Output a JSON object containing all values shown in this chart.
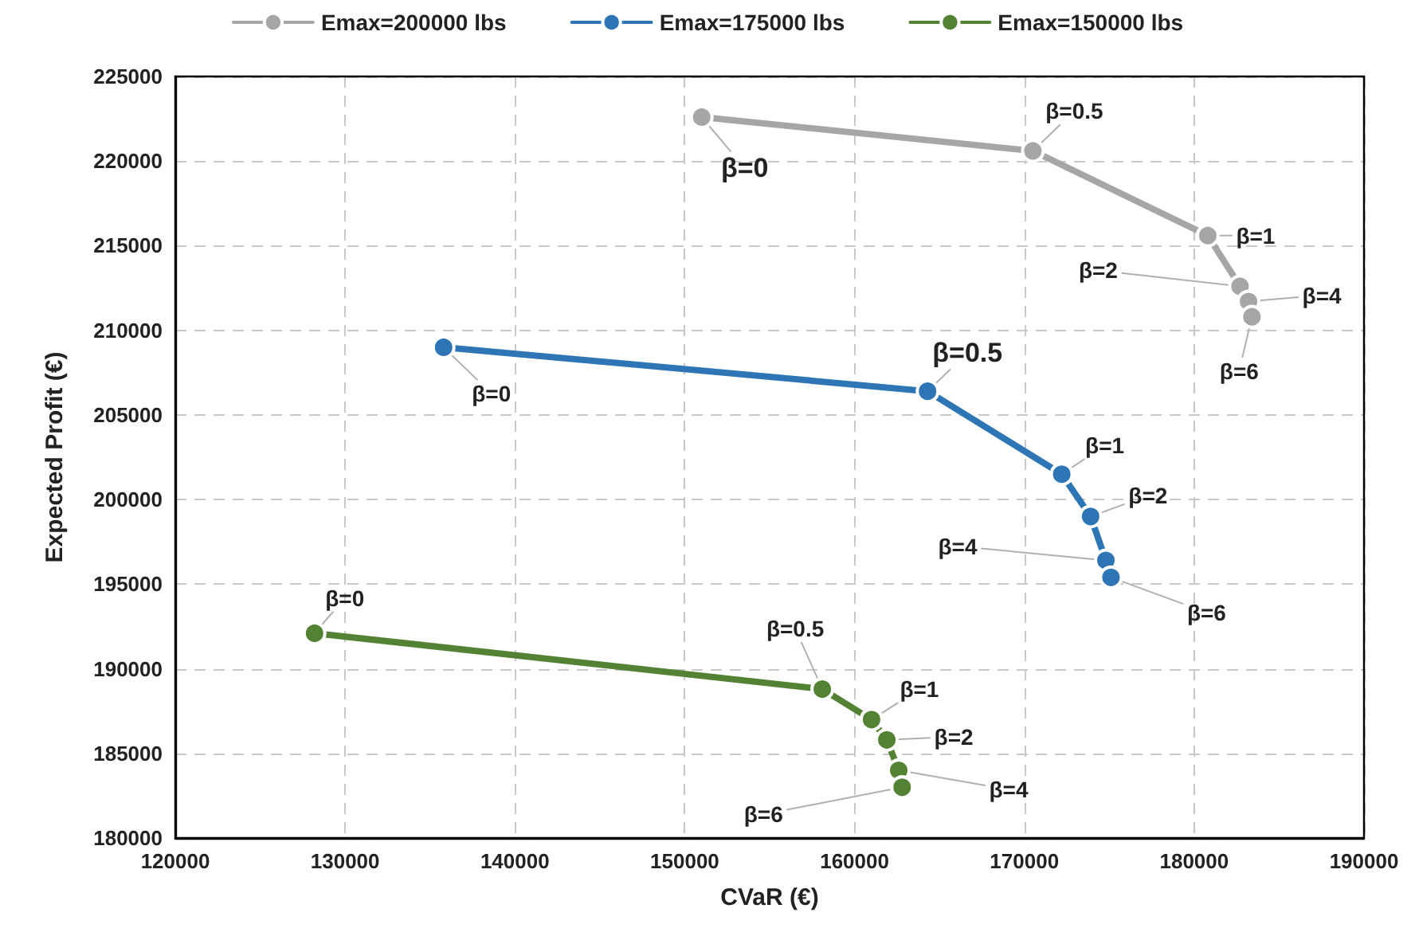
{
  "chart_data": {
    "type": "line",
    "xlabel": "CVaR (€)",
    "ylabel": "Expected Profit (€)",
    "xlim": [
      120000,
      190000
    ],
    "xticks": [
      120000,
      130000,
      140000,
      150000,
      160000,
      170000,
      180000,
      190000
    ],
    "ylim": [
      180000,
      225000
    ],
    "yticks": [
      180000,
      185000,
      190000,
      195000,
      200000,
      205000,
      210000,
      215000,
      220000,
      225000
    ],
    "grid": true,
    "legend": "top",
    "marker": "circle",
    "line_style": "solid",
    "series": [
      {
        "name": "Emax=200000 lbs",
        "color": "#a6a6a6",
        "x": [
          151000,
          170500,
          180800,
          182700,
          183200,
          183400
        ],
        "values": [
          222600,
          220600,
          215600,
          212600,
          211700,
          210800
        ]
      },
      {
        "name": "Emax=175000 lbs",
        "color": "#2e75b6",
        "x": [
          135800,
          164300,
          172200,
          173900,
          174800,
          175100
        ],
        "values": [
          209000,
          206400,
          201500,
          199000,
          196400,
          195400
        ]
      },
      {
        "name": "Emax=150000 lbs",
        "color": "#548235",
        "x": [
          128200,
          158100,
          161000,
          161900,
          162600,
          162800
        ],
        "values": [
          192100,
          188800,
          187000,
          185800,
          184000,
          183000
        ]
      }
    ],
    "annotations": [
      {
        "text": "β=0",
        "x": 151000,
        "y": 222600
      },
      {
        "text": "β=0.5",
        "x": 170500,
        "y": 220600
      },
      {
        "text": "β=1",
        "x": 180800,
        "y": 215600
      },
      {
        "text": "β=2",
        "x": 182700,
        "y": 212600
      },
      {
        "text": "β=4",
        "x": 183200,
        "y": 211700
      },
      {
        "text": "β=6",
        "x": 183400,
        "y": 210800
      },
      {
        "text": "β=0",
        "x": 135800,
        "y": 209000
      },
      {
        "text": "β=0.5",
        "x": 164300,
        "y": 206400
      },
      {
        "text": "β=1",
        "x": 172200,
        "y": 201500
      },
      {
        "text": "β=2",
        "x": 173900,
        "y": 199000
      },
      {
        "text": "β=4",
        "x": 174800,
        "y": 196400
      },
      {
        "text": "β=6",
        "x": 175100,
        "y": 195400
      },
      {
        "text": "β=0",
        "x": 128200,
        "y": 192100
      },
      {
        "text": "β=0.5",
        "x": 158100,
        "y": 188800
      },
      {
        "text": "β=1",
        "x": 161000,
        "y": 187000
      },
      {
        "text": "β=2",
        "x": 161900,
        "y": 185800
      },
      {
        "text": "β=4",
        "x": 162600,
        "y": 184000
      },
      {
        "text": "β=6",
        "x": 162800,
        "y": 183000
      }
    ]
  }
}
